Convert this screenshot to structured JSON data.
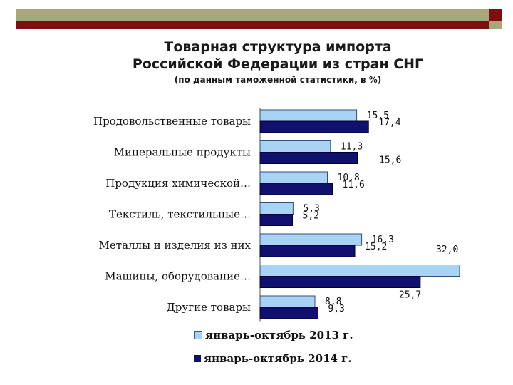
{
  "title": {
    "line1": "Товарная  структура импорта",
    "line2": "Российской Федерации из стран СНГ",
    "line3": "(по данным таможенной статистики,  в %)"
  },
  "colors": {
    "series2013": "#a9d3f5",
    "series2014": "#10106e",
    "accent_olive": "#a8a67a",
    "accent_red": "#7a1010"
  },
  "chart_data": {
    "type": "bar",
    "orientation": "horizontal",
    "title": "Товарная  структура импорта Российской Федерации из стран СНГ",
    "subtitle": "(по данным таможенной статистики,  в %)",
    "categories": [
      "Продовольственные товары",
      "Минеральные продукты",
      "Продукция химической…",
      "Текстиль, текстильные…",
      "Металлы и изделия из них",
      "Машины, оборудование…",
      "Другие товары"
    ],
    "series": [
      {
        "name": "январь-октябрь 2013 г.",
        "values": [
          15.5,
          11.3,
          10.8,
          5.3,
          16.3,
          32.0,
          8.8
        ],
        "labels": [
          "15,5",
          "11,3",
          "10,8",
          "5,3",
          "16,3",
          "32,0",
          "8,8"
        ]
      },
      {
        "name": "январь-октябрь 2014 г.",
        "values": [
          17.4,
          15.6,
          11.6,
          5.2,
          15.2,
          25.7,
          9.3
        ],
        "labels": [
          "17,4",
          "15,6",
          "11,6",
          "5,2",
          "15,2",
          "25,7",
          "9,3"
        ]
      }
    ],
    "xlim": [
      0,
      32
    ],
    "legend_position": "bottom",
    "grid": false
  },
  "legend": {
    "item1": "январь-октябрь 2013 г.",
    "item2": "январь-октябрь 2014 г."
  }
}
